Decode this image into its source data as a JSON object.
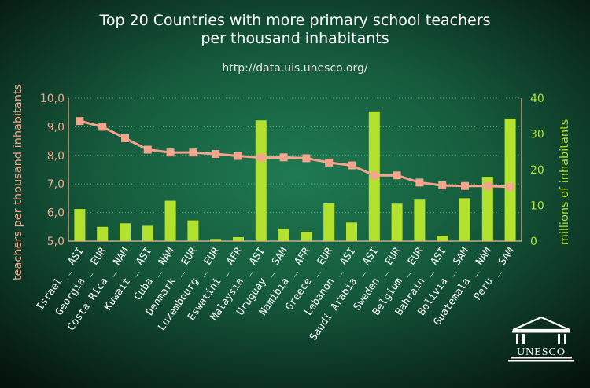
{
  "colors": {
    "bars": "#b3e22e",
    "line": "#f3a48c",
    "left_axis_text": "#f3a48c",
    "right_axis_text": "#b3e22e",
    "axis_line": "#e8b890",
    "grid": "#c8a37c"
  },
  "logo": {
    "text": "UNESCO",
    "icon": "unesco-temple-logo"
  },
  "chart_data": {
    "type": "bar+line",
    "title": "Top 20 Countries with more primary school teachers per thousand inhabitants",
    "title_lines": [
      "Top 20 Countries with more primary school teachers",
      "per thousand inhabitants"
    ],
    "subtitle": "http://data.uis.unesco.org/",
    "categories": [
      "Israel _ ASI",
      "Georgia _ EUR",
      "Costa Rica _ NAM",
      "Kuwait _ ASI",
      "Cuba _ NAM",
      "Denmark _ EUR",
      "Luxembourg _ EUR",
      "Eswatini _ AFR",
      "Malaysia _ ASI",
      "Uruguay _ SAM",
      "Namibia _ AFR",
      "Greece _ EUR",
      "Lebanon _ ASI",
      "Saudi Arabia _ ASI",
      "Sweden _ EUR",
      "Belgium _ EUR",
      "Bahrain _ ASI",
      "Bolivia _ SAM",
      "Guatemala _ NAM",
      "Peru _ SAM"
    ],
    "series": [
      {
        "name": "teachers per thousand inhabitants",
        "type": "line",
        "axis": "left",
        "values": [
          9.2,
          9.0,
          8.6,
          8.2,
          8.1,
          8.1,
          8.05,
          7.98,
          7.92,
          7.93,
          7.9,
          7.75,
          7.65,
          7.3,
          7.3,
          7.05,
          6.95,
          6.93,
          6.93,
          6.9
        ]
      },
      {
        "name": "millions of inhabitants",
        "type": "bar",
        "axis": "right",
        "values": [
          9,
          4,
          5,
          4.3,
          11.3,
          5.8,
          0.6,
          1.1,
          33.8,
          3.5,
          2.6,
          10.6,
          5.2,
          36.3,
          10.5,
          11.6,
          1.5,
          12,
          18,
          34.3
        ]
      }
    ],
    "y_left": {
      "label": "teachers per thousand inhabitants",
      "range": [
        5,
        10
      ],
      "ticks": [
        "5,0",
        "6,0",
        "7,0",
        "8,0",
        "9,0",
        "10,0"
      ]
    },
    "y_right": {
      "label": "millions of inhabitants",
      "range": [
        0,
        40
      ],
      "ticks": [
        "0",
        "10",
        "20",
        "30",
        "40"
      ]
    },
    "grid": "horizontal",
    "legend": "none"
  }
}
